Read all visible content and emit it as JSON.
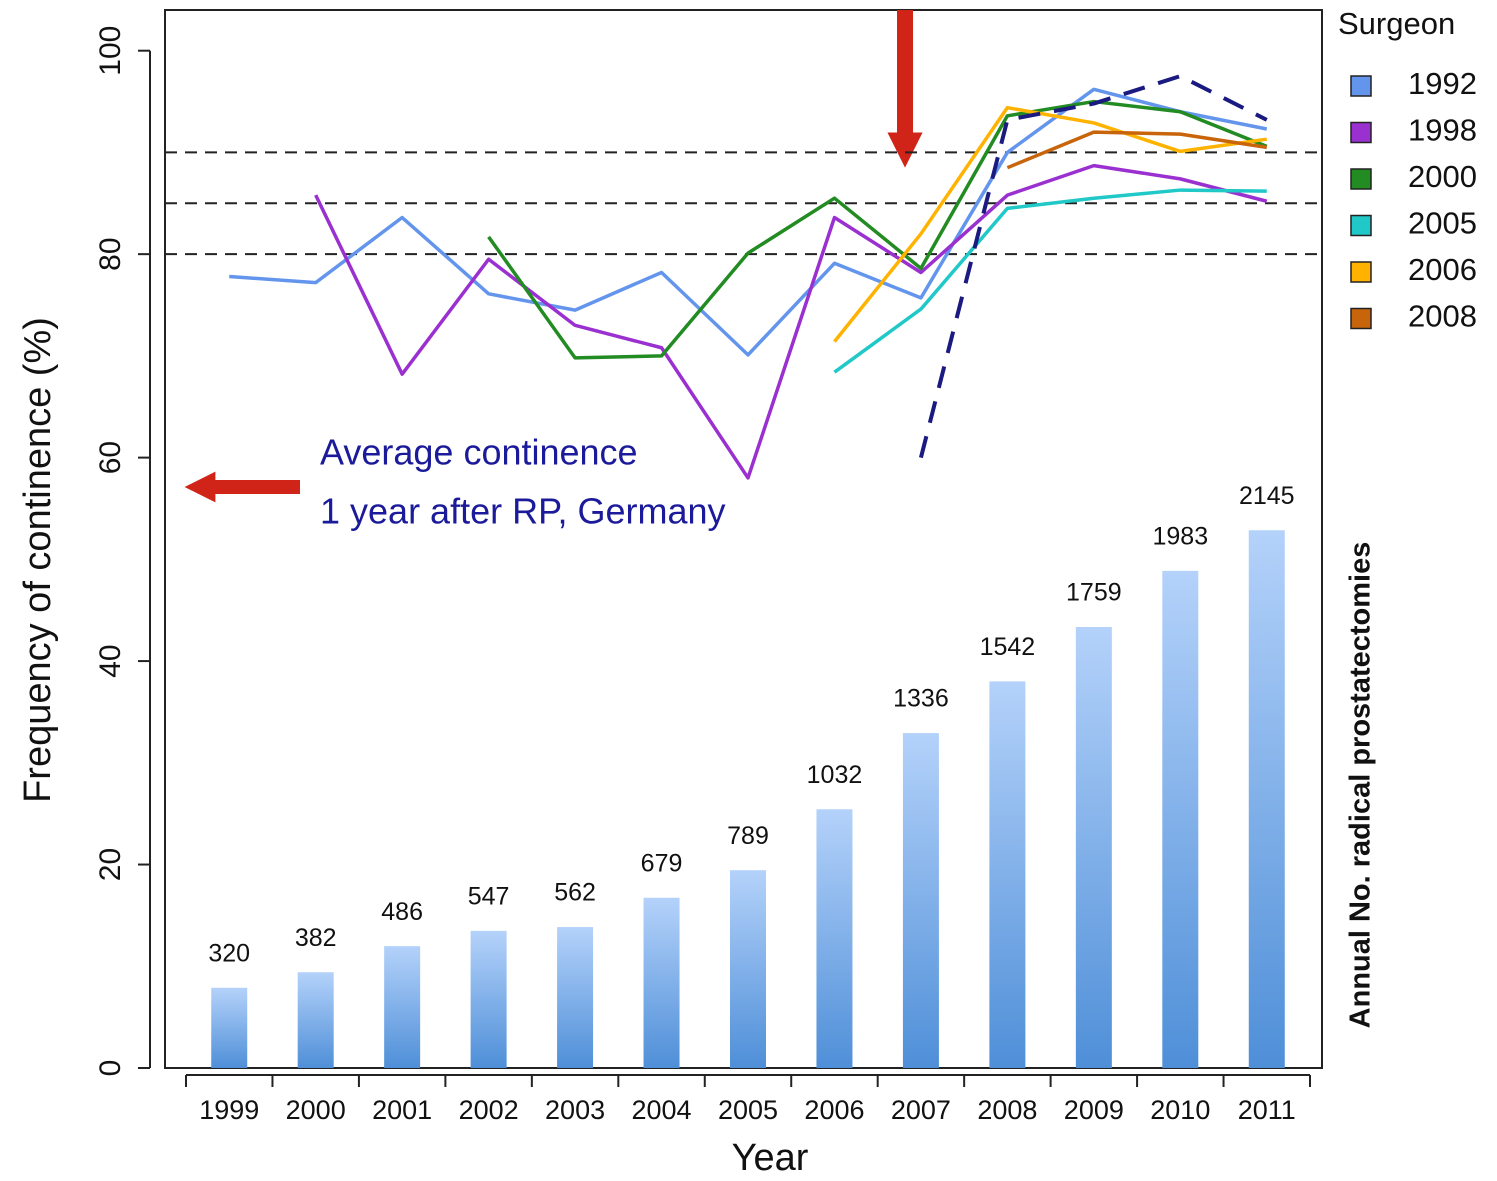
{
  "chart_data": {
    "type": "combo",
    "y_label": "Frequency of continence (%)",
    "y2_label": "Annual No. radical prostatectomies",
    "x_label": "Year",
    "legend_title": "Surgeon",
    "annotation": [
      "Average continence",
      "1 year after RP, Germany"
    ],
    "categories": [
      "1999",
      "2000",
      "2001",
      "2002",
      "2003",
      "2004",
      "2005",
      "2006",
      "2007",
      "2008",
      "2009",
      "2010",
      "2011"
    ],
    "ylim": [
      0,
      104
    ],
    "yticks": [
      0,
      20,
      40,
      60,
      80,
      100
    ],
    "y2lim": [
      0,
      4220
    ],
    "hlines": [
      80,
      85,
      90
    ],
    "bars": {
      "color": "#4f8fd8",
      "axis": "y2",
      "values": [
        320,
        382,
        486,
        547,
        562,
        679,
        789,
        1032,
        1336,
        1542,
        1759,
        1983,
        2145
      ]
    },
    "series": [
      {
        "name": "1992",
        "color": "#6495ed",
        "values": [
          77.8,
          77.2,
          83.6,
          76.1,
          74.5,
          78.2,
          70.1,
          79.1,
          75.7,
          90,
          96.2,
          94,
          92.3
        ]
      },
      {
        "name": "1998",
        "color": "#9b30d0",
        "values": [
          null,
          85.8,
          68.2,
          79.5,
          73,
          70.8,
          58,
          83.6,
          78.2,
          85.8,
          88.7,
          87.4,
          85.2
        ]
      },
      {
        "name": "2000",
        "color": "#228b22",
        "values": [
          null,
          null,
          null,
          81.7,
          69.8,
          70,
          80.1,
          85.5,
          78.6,
          93.6,
          95,
          94,
          90.6
        ]
      },
      {
        "name": "2005",
        "color": "#20c8c8",
        "values": [
          null,
          null,
          null,
          null,
          null,
          null,
          null,
          68.4,
          74.6,
          84.5,
          85.5,
          86.3,
          86.2
        ]
      },
      {
        "name": "2006",
        "color": "#ffb300",
        "values": [
          null,
          null,
          null,
          null,
          null,
          null,
          null,
          71.4,
          82,
          94.4,
          92.9,
          90.1,
          91.3
        ]
      },
      {
        "name": "2008",
        "color": "#c8640a",
        "values": [
          null,
          null,
          null,
          null,
          null,
          null,
          null,
          null,
          null,
          88.5,
          92,
          91.8,
          90.5
        ]
      },
      {
        "color": "#1a1a80",
        "dashed": true,
        "values": [
          null,
          null,
          null,
          null,
          null,
          null,
          null,
          null,
          60,
          93.2,
          94.8,
          97.5,
          93.2
        ]
      }
    ]
  }
}
